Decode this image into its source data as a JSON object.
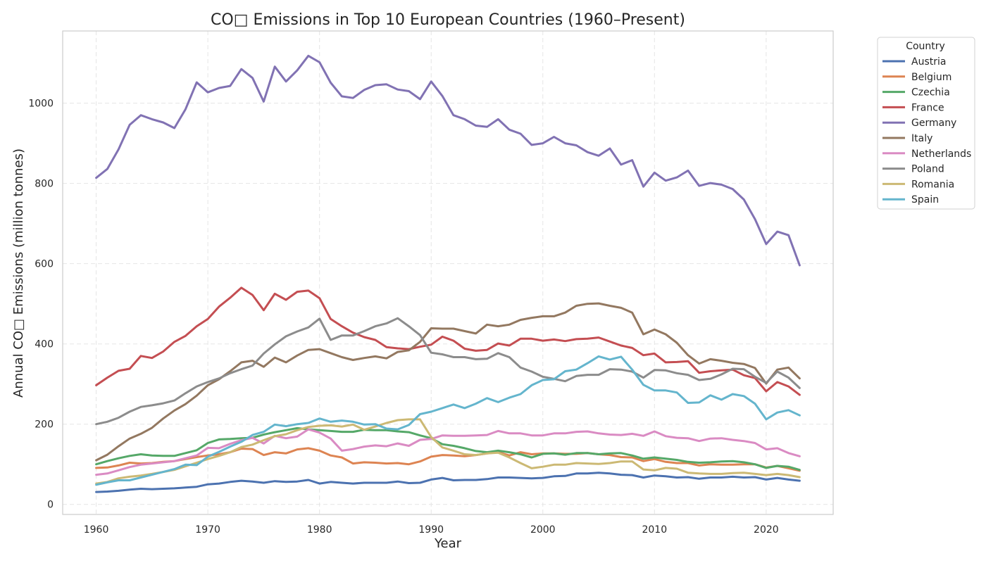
{
  "chart_data": {
    "type": "line",
    "title": "CO□ Emissions in Top 10 European Countries (1960–Present)",
    "xlabel": "Year",
    "ylabel": "Annual CO□ Emissions (million tonnes)",
    "xlim": [
      1957,
      2026
    ],
    "ylim": [
      -25,
      1180
    ],
    "xticks": [
      1960,
      1970,
      1980,
      1990,
      2000,
      2010,
      2020
    ],
    "yticks": [
      0,
      200,
      400,
      600,
      800,
      1000
    ],
    "grid": true,
    "legend": {
      "title": "Country",
      "placement": "outside-top-right"
    },
    "x_start": 1960,
    "series": [
      {
        "name": "Austria",
        "color": "#4c72b0",
        "values": [
          31,
          32,
          34,
          37,
          39,
          38,
          39,
          40,
          42,
          44,
          50,
          52,
          56,
          59,
          57,
          54,
          58,
          56,
          57,
          61,
          52,
          56,
          54,
          52,
          54,
          54,
          54,
          57,
          53,
          54,
          62,
          66,
          60,
          61,
          61,
          63,
          67,
          67,
          66,
          65,
          66,
          70,
          71,
          77,
          77,
          79,
          77,
          74,
          73,
          67,
          72,
          70,
          67,
          68,
          64,
          67,
          67,
          69,
          67,
          68,
          62,
          66,
          62,
          59
        ]
      },
      {
        "name": "Belgium",
        "color": "#dd8452",
        "values": [
          91,
          92,
          97,
          104,
          102,
          103,
          106,
          108,
          113,
          118,
          122,
          125,
          130,
          139,
          138,
          123,
          130,
          127,
          137,
          140,
          134,
          122,
          117,
          102,
          105,
          104,
          102,
          103,
          100,
          107,
          119,
          123,
          122,
          120,
          123,
          127,
          130,
          122,
          130,
          125,
          127,
          127,
          126,
          126,
          128,
          125,
          123,
          118,
          117,
          108,
          113,
          106,
          103,
          103,
          97,
          100,
          99,
          99,
          100,
          100,
          92,
          96,
          90,
          84
        ]
      },
      {
        "name": "Czechia",
        "color": "#55a868",
        "values": [
          100,
          108,
          115,
          121,
          125,
          122,
          121,
          121,
          128,
          135,
          153,
          162,
          163,
          165,
          166,
          174,
          180,
          185,
          190,
          187,
          185,
          183,
          181,
          181,
          186,
          185,
          185,
          182,
          180,
          172,
          165,
          150,
          146,
          140,
          133,
          130,
          134,
          130,
          125,
          117,
          126,
          127,
          124,
          128,
          128,
          125,
          127,
          128,
          122,
          114,
          117,
          114,
          111,
          106,
          104,
          105,
          107,
          108,
          105,
          100,
          91,
          96,
          94,
          86
        ]
      },
      {
        "name": "France",
        "color": "#c44e52",
        "values": [
          297,
          316,
          333,
          338,
          370,
          365,
          381,
          405,
          420,
          444,
          462,
          493,
          515,
          540,
          522,
          484,
          525,
          510,
          530,
          533,
          514,
          462,
          444,
          428,
          417,
          410,
          392,
          389,
          387,
          393,
          398,
          418,
          408,
          388,
          383,
          385,
          401,
          396,
          413,
          413,
          408,
          411,
          407,
          412,
          413,
          416,
          406,
          396,
          390,
          372,
          376,
          354,
          355,
          357,
          328,
          332,
          334,
          336,
          322,
          315,
          282,
          305,
          294,
          273
        ]
      },
      {
        "name": "Germany",
        "color": "#8172b3",
        "values": [
          814,
          836,
          885,
          946,
          970,
          960,
          952,
          938,
          985,
          1052,
          1027,
          1038,
          1043,
          1085,
          1063,
          1004,
          1091,
          1054,
          1082,
          1118,
          1102,
          1051,
          1017,
          1013,
          1033,
          1045,
          1047,
          1034,
          1030,
          1010,
          1054,
          1018,
          970,
          960,
          944,
          941,
          960,
          934,
          924,
          896,
          900,
          916,
          900,
          895,
          878,
          869,
          887,
          847,
          858,
          792,
          827,
          807,
          815,
          832,
          794,
          801,
          797,
          786,
          760,
          711,
          649,
          680,
          671,
          596
        ]
      },
      {
        "name": "Italy",
        "color": "#937860",
        "values": [
          110,
          124,
          145,
          164,
          176,
          191,
          214,
          234,
          250,
          271,
          297,
          312,
          332,
          354,
          358,
          343,
          366,
          354,
          371,
          385,
          387,
          377,
          367,
          360,
          365,
          369,
          364,
          380,
          384,
          405,
          439,
          438,
          438,
          432,
          426,
          448,
          444,
          448,
          460,
          465,
          469,
          469,
          478,
          495,
          500,
          501,
          495,
          490,
          478,
          424,
          436,
          424,
          403,
          372,
          351,
          362,
          358,
          353,
          350,
          340,
          301,
          336,
          341,
          314
        ]
      },
      {
        "name": "Netherlands",
        "color": "#da8bc3",
        "values": [
          74,
          77,
          85,
          93,
          99,
          102,
          105,
          108,
          115,
          122,
          141,
          140,
          151,
          160,
          166,
          152,
          171,
          165,
          169,
          187,
          179,
          164,
          134,
          138,
          144,
          147,
          145,
          152,
          146,
          161,
          163,
          172,
          171,
          171,
          172,
          173,
          183,
          177,
          177,
          172,
          172,
          177,
          177,
          181,
          182,
          177,
          174,
          173,
          176,
          171,
          182,
          170,
          166,
          165,
          158,
          164,
          165,
          161,
          158,
          153,
          137,
          140,
          128,
          120
        ]
      },
      {
        "name": "Poland",
        "color": "#8c8c8c",
        "values": [
          200,
          206,
          216,
          231,
          243,
          247,
          252,
          259,
          277,
          294,
          305,
          314,
          327,
          337,
          346,
          376,
          399,
          419,
          431,
          441,
          463,
          410,
          421,
          421,
          432,
          444,
          451,
          464,
          444,
          422,
          378,
          374,
          367,
          367,
          362,
          363,
          377,
          367,
          341,
          331,
          318,
          313,
          307,
          320,
          323,
          323,
          337,
          336,
          331,
          316,
          335,
          334,
          327,
          323,
          310,
          313,
          324,
          338,
          337,
          318,
          303,
          331,
          316,
          290
        ]
      },
      {
        "name": "Romania",
        "color": "#ccb974",
        "values": [
          52,
          56,
          65,
          69,
          72,
          76,
          81,
          86,
          95,
          104,
          113,
          121,
          130,
          143,
          149,
          160,
          170,
          175,
          185,
          193,
          196,
          197,
          194,
          199,
          186,
          194,
          203,
          210,
          212,
          212,
          168,
          142,
          134,
          125,
          123,
          127,
          129,
          117,
          103,
          90,
          94,
          99,
          99,
          103,
          102,
          101,
          103,
          107,
          107,
          87,
          85,
          91,
          89,
          79,
          77,
          76,
          76,
          78,
          79,
          76,
          73,
          76,
          73,
          68
        ]
      },
      {
        "name": "Spain",
        "color": "#64b5cd",
        "values": [
          49,
          55,
          60,
          60,
          67,
          74,
          81,
          88,
          99,
          98,
          119,
          131,
          144,
          156,
          173,
          181,
          199,
          195,
          200,
          203,
          214,
          206,
          209,
          206,
          199,
          200,
          189,
          187,
          198,
          225,
          231,
          240,
          249,
          240,
          251,
          265,
          255,
          266,
          275,
          297,
          310,
          312,
          332,
          336,
          352,
          369,
          361,
          368,
          336,
          298,
          284,
          284,
          279,
          253,
          254,
          272,
          261,
          275,
          270,
          251,
          212,
          229,
          235,
          222
        ]
      }
    ]
  }
}
